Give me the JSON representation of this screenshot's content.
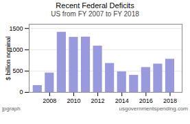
{
  "chart_data": {
    "type": "bar",
    "title": "Recent Federal Deficits",
    "subtitle": "US from FY 2007 to FY 2018",
    "x": [
      2007,
      2008,
      2009,
      2010,
      2011,
      2012,
      2013,
      2014,
      2015,
      2016,
      2017,
      2018
    ],
    "values": [
      161,
      455,
      1413,
      1294,
      1300,
      1087,
      680,
      483,
      402,
      585,
      665,
      779
    ],
    "color": "#9999dd",
    "ylabel": "$ billion nominal",
    "xlim": [
      2006.3,
      2019.0
    ],
    "xticks": [
      2008,
      2010,
      2012,
      2014,
      2016,
      2018
    ],
    "ylim": [
      0,
      1600
    ],
    "yticks": [
      0,
      500,
      1000,
      1500
    ],
    "grid": true,
    "annotations": [
      "jpgraph",
      "usgovernmentspending.com"
    ]
  }
}
